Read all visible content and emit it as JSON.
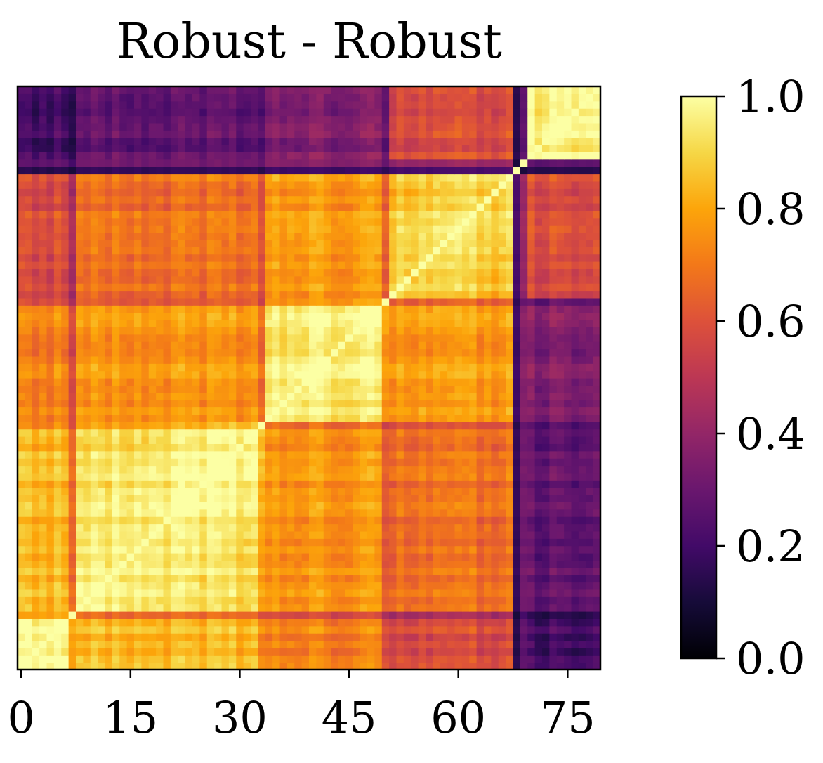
{
  "chart_data": {
    "type": "heatmap",
    "title": "Robust - Robust",
    "xlabel": "",
    "ylabel": "",
    "n": 80,
    "x_ticks": [
      0,
      15,
      30,
      45,
      60,
      75
    ],
    "x_tick_labels": [
      "0",
      "15",
      "30",
      "45",
      "60",
      "75"
    ],
    "colormap": "inferno",
    "vmin": 0.0,
    "vmax": 1.0,
    "colorbar_ticks": [
      0.0,
      0.2,
      0.4,
      0.6,
      0.8,
      1.0
    ],
    "colorbar_tick_labels": [
      "0.0",
      "0.2",
      "0.4",
      "0.6",
      "0.8",
      "1.0"
    ],
    "origin": "lower",
    "blocks": [
      {
        "range": [
          0,
          7
        ],
        "within": 0.93
      },
      {
        "range": [
          8,
          33
        ],
        "within": 0.9
      },
      {
        "range": [
          34,
          50
        ],
        "within": 0.9
      },
      {
        "range": [
          51,
          69
        ],
        "within": 0.84
      },
      {
        "range": [
          70,
          79
        ],
        "within": 0.9
      }
    ],
    "block_pairs": [
      {
        "a": 0,
        "b": 1,
        "value": 0.84
      },
      {
        "a": 0,
        "b": 2,
        "value": 0.72
      },
      {
        "a": 0,
        "b": 3,
        "value": 0.58
      },
      {
        "a": 0,
        "b": 4,
        "value": 0.2
      },
      {
        "a": 1,
        "b": 2,
        "value": 0.76
      },
      {
        "a": 1,
        "b": 3,
        "value": 0.68
      },
      {
        "a": 1,
        "b": 4,
        "value": 0.27
      },
      {
        "a": 2,
        "b": 3,
        "value": 0.78
      },
      {
        "a": 2,
        "b": 4,
        "value": 0.35
      },
      {
        "a": 3,
        "b": 4,
        "value": 0.58
      }
    ],
    "dark_lines": [
      {
        "index": 7,
        "factor": 0.82
      },
      {
        "index": 33,
        "factor": 0.88
      },
      {
        "index": 50,
        "factor": 0.84
      },
      {
        "index": 68,
        "factor": 0.25
      },
      {
        "index": 69,
        "factor": 0.45
      }
    ]
  }
}
